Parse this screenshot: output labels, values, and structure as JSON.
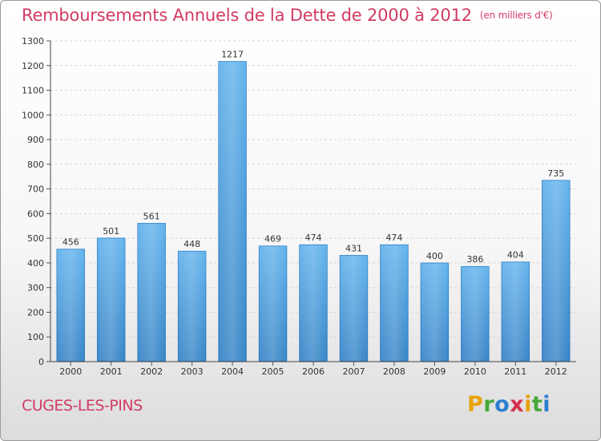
{
  "chart_data": {
    "type": "bar",
    "title": "Remboursements Annuels de la Dette de 2000 à 2012",
    "subtitle": "(en milliers d'€)",
    "xlabel": "",
    "ylabel": "",
    "categories": [
      "2000",
      "2001",
      "2002",
      "2003",
      "2004",
      "2005",
      "2006",
      "2007",
      "2008",
      "2009",
      "2010",
      "2011",
      "2012"
    ],
    "values": [
      456,
      501,
      561,
      448,
      1217,
      469,
      474,
      431,
      474,
      400,
      386,
      404,
      735
    ],
    "ylim": [
      0,
      1300
    ],
    "yticks": [
      0,
      100,
      200,
      300,
      400,
      500,
      600,
      700,
      800,
      900,
      1000,
      1100,
      1200,
      1300
    ],
    "grid": true,
    "bar_color": "#4aa0e0"
  },
  "footer": {
    "town": "CUGES-LES-PINS",
    "logo_letters": [
      "P",
      "r",
      "o",
      "x",
      "i",
      "t",
      "i"
    ],
    "logo_colors": [
      "#e8a20c",
      "#47a83a",
      "#2d7fd0",
      "#d6304f",
      "#e8a20c",
      "#47a83a",
      "#2d7fd0"
    ]
  }
}
